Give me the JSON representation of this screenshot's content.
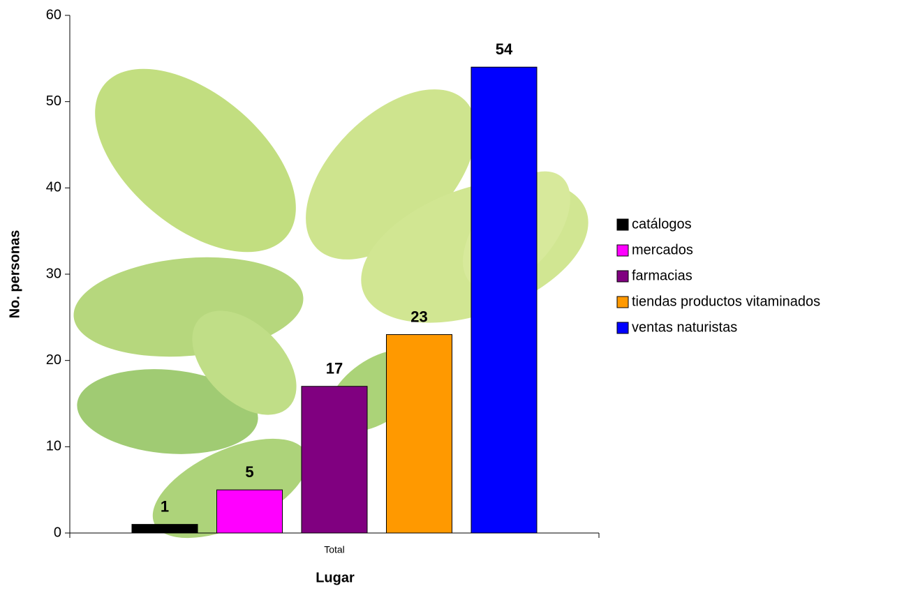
{
  "chart_data": {
    "type": "bar",
    "y_label": "No. personas",
    "x_label": "Lugar",
    "categories": [
      "Total"
    ],
    "series": [
      {
        "name": "catálogos",
        "color": "#000000",
        "values": [
          1
        ]
      },
      {
        "name": "mercados",
        "color": "#ff00ff",
        "values": [
          5
        ]
      },
      {
        "name": "farmacias",
        "color": "#800080",
        "values": [
          17
        ]
      },
      {
        "name": "tiendas productos vitaminados",
        "color": "#ff9900",
        "values": [
          23
        ]
      },
      {
        "name": "ventas naturistas",
        "color": "#0000ff",
        "values": [
          54
        ]
      }
    ],
    "ylim": [
      0,
      60
    ],
    "yticks": [
      0,
      10,
      20,
      30,
      40,
      50,
      60
    ],
    "grid": false,
    "legend": "right"
  }
}
